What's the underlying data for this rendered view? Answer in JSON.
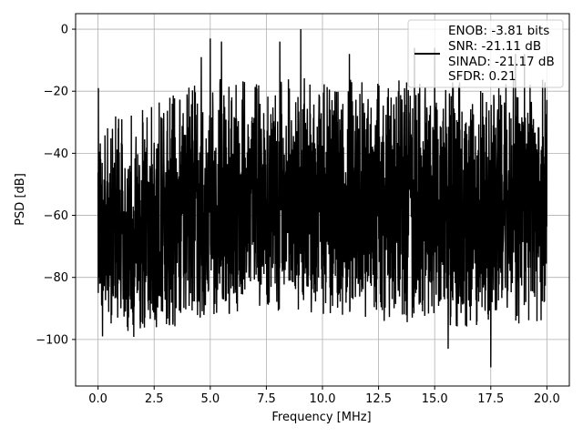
{
  "chart_data": {
    "type": "line",
    "title": "",
    "xlabel": "Frequency [MHz]",
    "ylabel": "PSD [dB]",
    "xlim": [
      -1.0,
      21.0
    ],
    "ylim": [
      -115,
      5
    ],
    "xticks": [
      0.0,
      2.5,
      5.0,
      7.5,
      10.0,
      12.5,
      15.0,
      17.5,
      20.0
    ],
    "xtick_labels": [
      "0.0",
      "2.5",
      "5.0",
      "7.5",
      "10.0",
      "12.5",
      "15.0",
      "17.5",
      "20.0"
    ],
    "yticks": [
      0,
      -20,
      -40,
      -60,
      -80,
      -100
    ],
    "ytick_labels": [
      "0",
      "−20",
      "−40",
      "−60",
      "−80",
      "−100"
    ],
    "grid": true,
    "legend_position": "top-right",
    "legend_entries": [
      "ENOB: -3.81 bits",
      "SNR: -21.11 dB",
      "SINAD: -21.17 dB",
      "SFDR: 0.21"
    ],
    "series_color": "#000000",
    "series": [
      {
        "x_start": 0.0,
        "x_end": 20.0,
        "envelope_low": [
          [
            0.0,
            -85
          ],
          [
            0.5,
            -92
          ],
          [
            1.0,
            -94
          ],
          [
            2.0,
            -93
          ],
          [
            3.0,
            -92
          ],
          [
            4.0,
            -90
          ],
          [
            5.0,
            -88
          ],
          [
            7.5,
            -85
          ],
          [
            10.0,
            -86
          ],
          [
            12.5,
            -88
          ],
          [
            15.0,
            -90
          ],
          [
            17.5,
            -90
          ],
          [
            20.0,
            -88
          ]
        ],
        "envelope_high": [
          [
            0.0,
            -35
          ],
          [
            0.5,
            -40
          ],
          [
            1.0,
            -40
          ],
          [
            2.0,
            -37
          ],
          [
            3.0,
            -34
          ],
          [
            4.0,
            -30
          ],
          [
            5.0,
            -28
          ],
          [
            7.5,
            -27
          ],
          [
            10.0,
            -28
          ],
          [
            12.5,
            -28
          ],
          [
            15.0,
            -29
          ],
          [
            17.5,
            -27
          ],
          [
            20.0,
            -28
          ]
        ],
        "peaks": [
          {
            "x": 0.02,
            "y": -19
          },
          {
            "x": 0.2,
            "y": -99
          },
          {
            "x": 4.6,
            "y": -9
          },
          {
            "x": 5.0,
            "y": -3
          },
          {
            "x": 5.5,
            "y": -4
          },
          {
            "x": 8.1,
            "y": -4
          },
          {
            "x": 9.03,
            "y": 0
          },
          {
            "x": 11.2,
            "y": -8
          },
          {
            "x": 14.1,
            "y": -6
          },
          {
            "x": 15.0,
            "y": -6
          },
          {
            "x": 15.6,
            "y": -103
          },
          {
            "x": 17.5,
            "y": -109
          },
          {
            "x": 18.6,
            "y": -8
          },
          {
            "x": 19.0,
            "y": -8
          }
        ]
      }
    ]
  }
}
